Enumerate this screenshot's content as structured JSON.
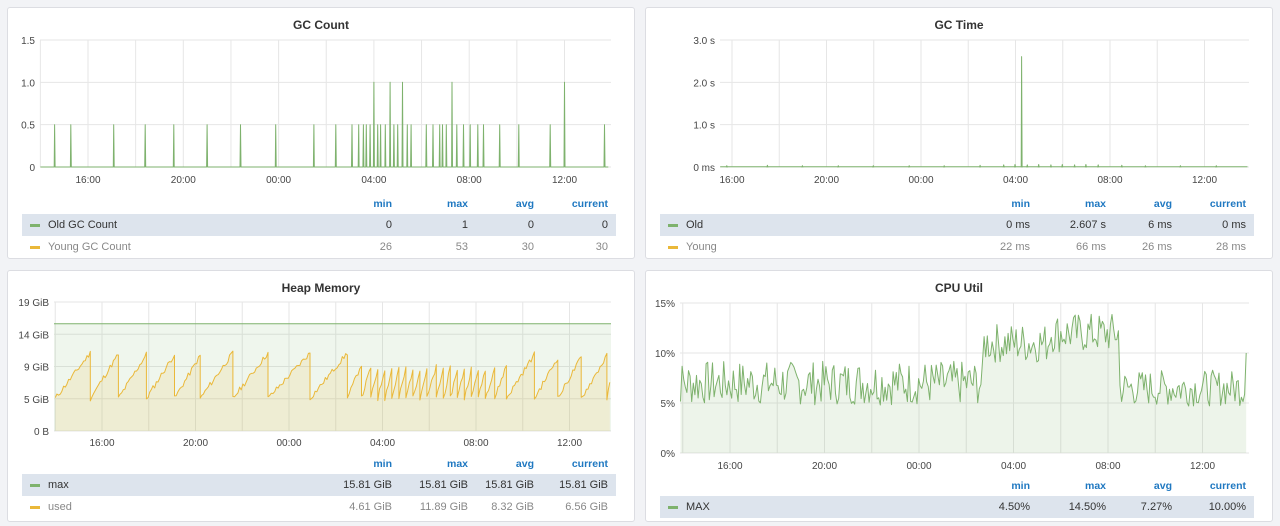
{
  "colors": {
    "green": "#7eb26d",
    "yellow": "#eab839",
    "grid": "#e6e6e6",
    "text": "#464646"
  },
  "panels": [
    {
      "id": "gc-count",
      "title": "GC Count",
      "chart_data": {
        "type": "line",
        "title": "GC Count",
        "x_ticks": [
          "16:00",
          "20:00",
          "00:00",
          "04:00",
          "08:00",
          "12:00"
        ],
        "y_ticks": [
          "0",
          "0.5",
          "1.0",
          "1.5"
        ],
        "ylim": [
          0,
          1.5
        ],
        "x_range_hours": [
          14.0,
          37.85
        ],
        "series": [
          {
            "name": "Old GC Count",
            "color": "#7eb26d",
            "baseline": 0,
            "spikes": [
              [
                14.6,
                0.5
              ],
              [
                15.3,
                0.5
              ],
              [
                17.1,
                0.5
              ],
              [
                18.4,
                0.5
              ],
              [
                19.6,
                0.5
              ],
              [
                21.0,
                0.5
              ],
              [
                22.4,
                0.5
              ],
              [
                23.9,
                0.5
              ],
              [
                25.5,
                0.5
              ],
              [
                26.4,
                0.5
              ],
              [
                27.1,
                0.5
              ],
              [
                27.35,
                0.5
              ],
              [
                27.55,
                0.5
              ],
              [
                27.7,
                0.5
              ],
              [
                27.85,
                0.5
              ],
              [
                28.0,
                1.0
              ],
              [
                28.15,
                0.5
              ],
              [
                28.3,
                0.5
              ],
              [
                28.5,
                0.5
              ],
              [
                28.7,
                1.0
              ],
              [
                28.85,
                0.5
              ],
              [
                29.0,
                0.5
              ],
              [
                29.2,
                1.0
              ],
              [
                29.4,
                0.5
              ],
              [
                29.55,
                0.5
              ],
              [
                30.2,
                0.5
              ],
              [
                30.5,
                0.5
              ],
              [
                30.75,
                0.5
              ],
              [
                30.9,
                0.5
              ],
              [
                31.05,
                0.5
              ],
              [
                31.3,
                1.0
              ],
              [
                31.5,
                0.5
              ],
              [
                31.75,
                0.5
              ],
              [
                32.05,
                0.5
              ],
              [
                32.35,
                0.5
              ],
              [
                32.6,
                0.5
              ],
              [
                33.3,
                0.5
              ],
              [
                34.1,
                0.5
              ],
              [
                35.4,
                0.5
              ],
              [
                36.0,
                1.0
              ],
              [
                37.7,
                0.5
              ]
            ]
          },
          {
            "name": "Young GC Count",
            "color": "#eab839",
            "hidden": true
          }
        ]
      },
      "legend": {
        "headers": [
          "min",
          "max",
          "avg",
          "current"
        ],
        "rows": [
          {
            "name": "Old GC Count",
            "color": "#7eb26d",
            "values": [
              "0",
              "1",
              "0",
              "0"
            ],
            "highlight": true
          },
          {
            "name": "Young GC Count",
            "color": "#eab839",
            "values": [
              "26",
              "53",
              "30",
              "30"
            ],
            "highlight": false
          }
        ]
      }
    },
    {
      "id": "gc-time",
      "title": "GC Time",
      "chart_data": {
        "type": "line",
        "title": "GC Time",
        "x_ticks": [
          "16:00",
          "20:00",
          "00:00",
          "04:00",
          "08:00",
          "12:00"
        ],
        "y_ticks": [
          "0 ms",
          "1.0 s",
          "2.0 s",
          "3.0 s"
        ],
        "ylim": [
          0,
          3.0
        ],
        "x_range_hours": [
          13.5,
          37.85
        ],
        "series": [
          {
            "name": "Old",
            "color": "#7eb26d",
            "baseline": 0,
            "spikes": [
              [
                14.5,
                0.03
              ],
              [
                15.8,
                0.03
              ],
              [
                17.5,
                0.04
              ],
              [
                19.0,
                0.03
              ],
              [
                20.5,
                0.03
              ],
              [
                22.0,
                0.03
              ],
              [
                23.5,
                0.03
              ],
              [
                25.0,
                0.03
              ],
              [
                26.5,
                0.04
              ],
              [
                27.5,
                0.05
              ],
              [
                28.0,
                0.06
              ],
              [
                28.25,
                2.607
              ],
              [
                28.5,
                0.05
              ],
              [
                29.0,
                0.06
              ],
              [
                29.5,
                0.05
              ],
              [
                30.0,
                0.06
              ],
              [
                30.5,
                0.05
              ],
              [
                31.0,
                0.06
              ],
              [
                31.5,
                0.05
              ],
              [
                32.5,
                0.04
              ],
              [
                33.5,
                0.03
              ],
              [
                35.0,
                0.03
              ],
              [
                36.5,
                0.03
              ]
            ]
          },
          {
            "name": "Young",
            "color": "#eab839",
            "hidden": true
          }
        ]
      },
      "legend": {
        "headers": [
          "min",
          "max",
          "avg",
          "current"
        ],
        "rows": [
          {
            "name": "Old",
            "color": "#7eb26d",
            "values": [
              "0 ms",
              "2.607 s",
              "6 ms",
              "0 ms"
            ],
            "highlight": true
          },
          {
            "name": "Young",
            "color": "#eab839",
            "values": [
              "22 ms",
              "66 ms",
              "26 ms",
              "28 ms"
            ],
            "highlight": false
          }
        ]
      }
    },
    {
      "id": "heap-memory",
      "title": "Heap Memory",
      "chart_data": {
        "type": "area",
        "title": "Heap Memory",
        "x_ticks": [
          "16:00",
          "20:00",
          "00:00",
          "04:00",
          "08:00",
          "12:00"
        ],
        "y_ticks": [
          "0 B",
          "5 GiB",
          "9 GiB",
          "14 GiB",
          "19 GiB"
        ],
        "ylim": [
          0,
          19
        ],
        "x_range_hours": [
          14.0,
          37.85
        ],
        "series": [
          {
            "name": "max",
            "color": "#7eb26d",
            "constant": 15.81
          },
          {
            "name": "used",
            "color": "#eab839",
            "sawtooth": {
              "starts": [
                14.0,
                15.5,
                16.7,
                17.9,
                19.1,
                20.2,
                21.6,
                23.1,
                24.9,
                26.5,
                27.1,
                27.5,
                27.8,
                28.1,
                28.4,
                28.7,
                29.0,
                29.3,
                29.6,
                29.9,
                30.3,
                30.6,
                30.9,
                31.2,
                31.5,
                31.8,
                32.1,
                32.4,
                32.8,
                33.3,
                34.5,
                35.5,
                36.5,
                37.6
              ],
              "low": 4.8,
              "high": 11.5
            }
          }
        ]
      },
      "legend": {
        "headers": [
          "min",
          "max",
          "avg",
          "current"
        ],
        "rows": [
          {
            "name": "max",
            "color": "#7eb26d",
            "values": [
              "15.81 GiB",
              "15.81 GiB",
              "15.81 GiB",
              "15.81 GiB"
            ],
            "highlight": true
          },
          {
            "name": "used",
            "color": "#eab839",
            "values": [
              "4.61 GiB",
              "11.89 GiB",
              "8.32 GiB",
              "6.56 GiB"
            ],
            "highlight": false
          }
        ]
      }
    },
    {
      "id": "cpu-util",
      "title": "CPU Util",
      "chart_data": {
        "type": "area",
        "title": "CPU Util",
        "x_ticks": [
          "16:00",
          "20:00",
          "00:00",
          "04:00",
          "08:00",
          "12:00"
        ],
        "y_ticks": [
          "0%",
          "5%",
          "10%",
          "15%"
        ],
        "ylim": [
          0,
          15
        ],
        "x_range_hours": [
          13.5,
          37.85
        ],
        "series": [
          {
            "name": "MAX",
            "color": "#7eb26d",
            "segments": [
              [
                13.5,
                7.0,
                2.2
              ],
              [
                26.7,
                11.0,
                2.0
              ],
              [
                29.5,
                12.0,
                2.0
              ],
              [
                32.5,
                6.5,
                1.8
              ],
              [
                37.85,
                6.5,
                1.8
              ]
            ],
            "samples": 360,
            "min": 4.5,
            "max": 14.5,
            "last": 10.0
          }
        ]
      },
      "legend": {
        "headers": [
          "min",
          "max",
          "avg",
          "current"
        ],
        "rows": [
          {
            "name": "MAX",
            "color": "#7eb26d",
            "values": [
              "4.50%",
              "14.50%",
              "7.27%",
              "10.00%"
            ],
            "highlight": true
          }
        ]
      }
    }
  ]
}
